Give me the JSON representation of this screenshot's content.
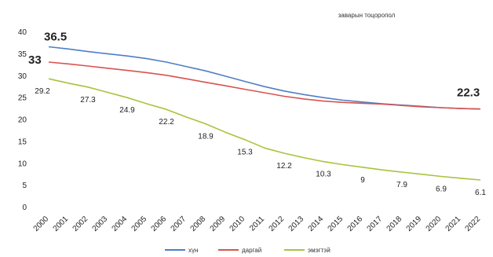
{
  "chart_data": {
    "type": "line",
    "title": "заварын тоцоропол",
    "x": [
      "2000",
      "2001",
      "2002",
      "2003",
      "2004",
      "2005",
      "2006",
      "2007",
      "2008",
      "2009",
      "2010",
      "2011",
      "2012",
      "2013",
      "2014",
      "2015",
      "2016",
      "2017",
      "2018",
      "2019",
      "2020",
      "2021",
      "2022"
    ],
    "ylim": [
      0,
      40
    ],
    "yticks": [
      0,
      5,
      10,
      15,
      20,
      25,
      30,
      35,
      40
    ],
    "grid": false,
    "legend": "bottom",
    "series": [
      {
        "name": "хүн",
        "color": "#4f7fc4",
        "values": [
          36.5,
          36.0,
          35.4,
          34.9,
          34.4,
          33.8,
          33.0,
          32.0,
          31.0,
          29.8,
          28.6,
          27.4,
          26.4,
          25.6,
          24.9,
          24.3,
          23.9,
          23.5,
          23.2,
          22.9,
          22.6,
          22.4,
          22.3
        ]
      },
      {
        "name": "даргай",
        "color": "#d9534f",
        "values": [
          33.0,
          32.6,
          32.1,
          31.6,
          31.1,
          30.6,
          30.0,
          29.2,
          28.4,
          27.6,
          26.8,
          26.0,
          25.2,
          24.6,
          24.1,
          23.8,
          23.6,
          23.4,
          23.1,
          22.8,
          22.6,
          22.4,
          22.3
        ]
      },
      {
        "name": "эмэгтэй",
        "color": "#a7c43c",
        "values": [
          29.2,
          28.2,
          27.3,
          26.1,
          24.9,
          23.5,
          22.2,
          20.5,
          18.9,
          17.0,
          15.3,
          13.4,
          12.2,
          11.2,
          10.3,
          9.6,
          9.0,
          8.4,
          7.9,
          7.4,
          6.9,
          6.5,
          6.1
        ]
      }
    ],
    "data_labels": [
      {
        "series": 0,
        "index": 0,
        "text": "36.5",
        "style": "big"
      },
      {
        "series": 1,
        "index": 0,
        "text": "33",
        "style": "big"
      },
      {
        "series": 1,
        "index": 22,
        "text": "22.3",
        "style": "big"
      },
      {
        "series": 2,
        "index": 0,
        "text": "29.2"
      },
      {
        "series": 2,
        "index": 2,
        "text": "27.3"
      },
      {
        "series": 2,
        "index": 4,
        "text": "24.9"
      },
      {
        "series": 2,
        "index": 6,
        "text": "22.2"
      },
      {
        "series": 2,
        "index": 8,
        "text": "18.9"
      },
      {
        "series": 2,
        "index": 10,
        "text": "15.3"
      },
      {
        "series": 2,
        "index": 12,
        "text": "12.2"
      },
      {
        "series": 2,
        "index": 14,
        "text": "10.3"
      },
      {
        "series": 2,
        "index": 16,
        "text": "9"
      },
      {
        "series": 2,
        "index": 18,
        "text": "7.9"
      },
      {
        "series": 2,
        "index": 20,
        "text": "6.9"
      },
      {
        "series": 2,
        "index": 22,
        "text": "6.1"
      }
    ]
  }
}
